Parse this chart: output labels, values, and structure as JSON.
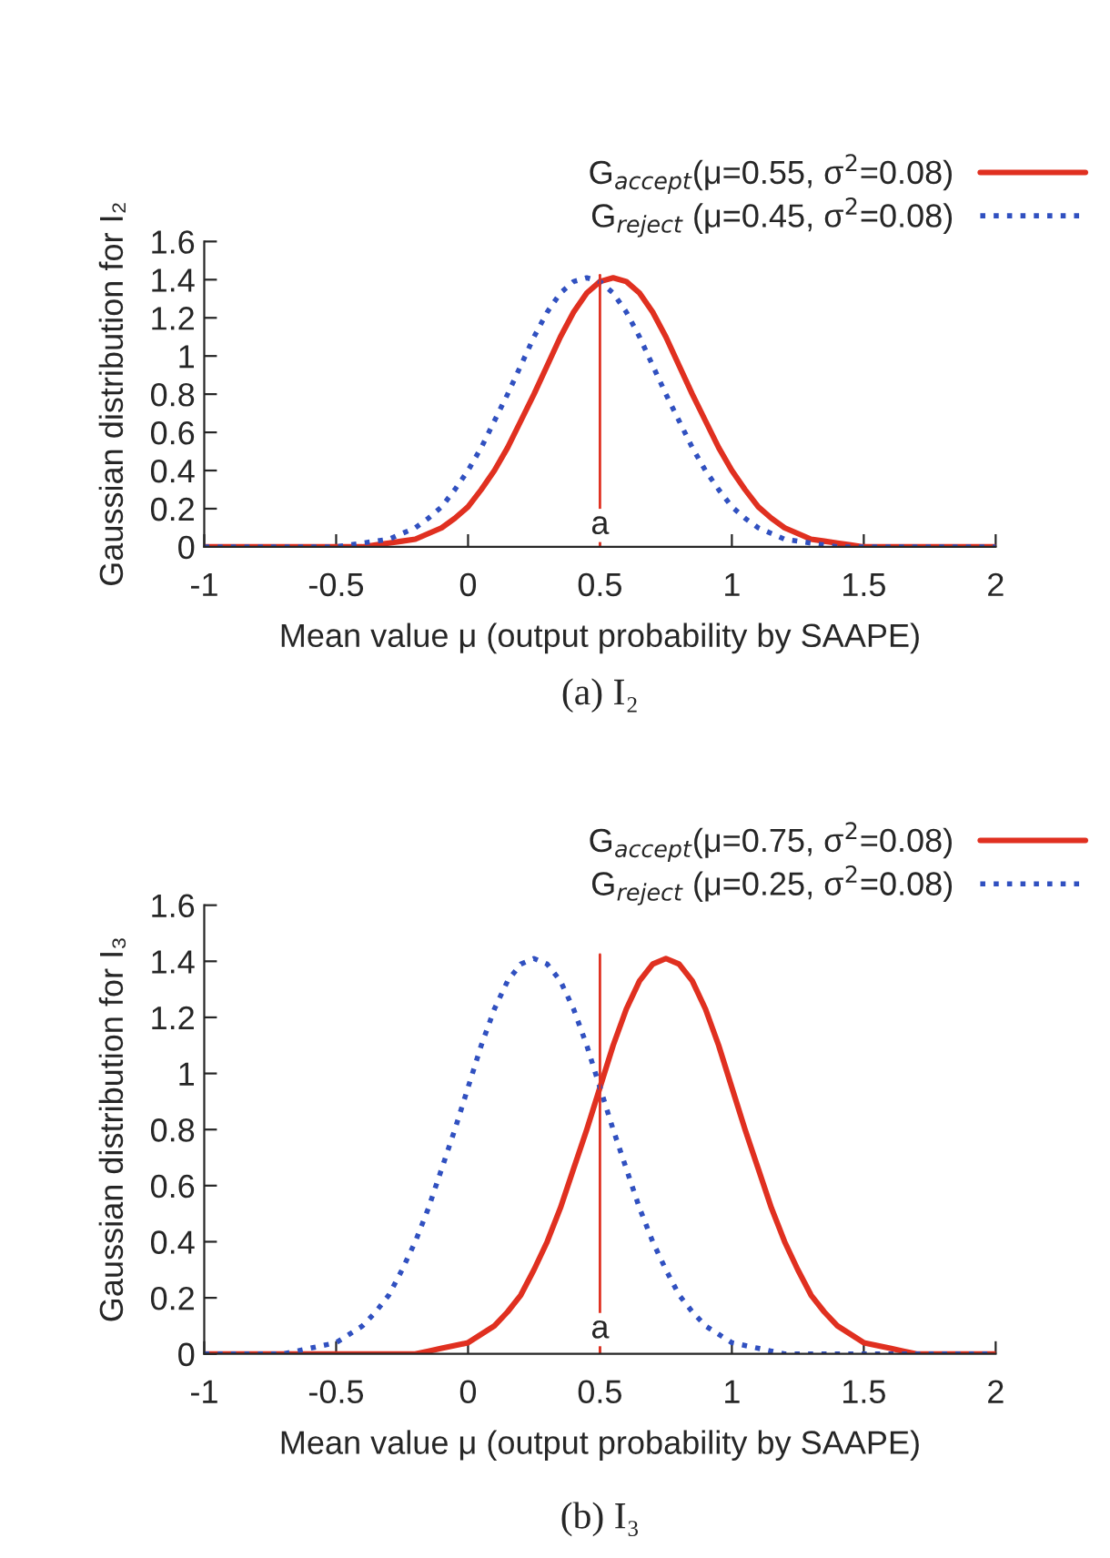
{
  "chart_data": [
    {
      "type": "line",
      "ylabel": "Gaussian distribution for I₂",
      "xlabel": "Mean value μ (output probability by SAAPE)",
      "annotations": [
        "(a) I₂"
      ],
      "legend": "top right",
      "xlim": [
        -1,
        2
      ],
      "xticks": [
        -1,
        -0.5,
        0,
        0.5,
        1,
        1.5,
        2
      ],
      "ylim": [
        0,
        1.6
      ],
      "yticks": [
        0,
        0.2,
        0.4,
        0.6,
        0.8,
        1,
        1.2,
        1.4,
        1.6
      ],
      "grid": false,
      "ref_lines": [
        {
          "axis": "x",
          "value": 0.5,
          "label": "a",
          "color": "#e03020"
        }
      ],
      "x": [
        -1,
        -0.95,
        -0.9,
        -0.85,
        -0.8,
        -0.75,
        -0.7,
        -0.65,
        -0.6,
        -0.55,
        -0.5,
        -0.45,
        -0.4,
        -0.35,
        -0.3,
        -0.25,
        -0.2,
        -0.15,
        -0.1,
        -0.05,
        0,
        0.05,
        0.1,
        0.15,
        0.2,
        0.25,
        0.3,
        0.35,
        0.4,
        0.45,
        0.5,
        0.55,
        0.6,
        0.65,
        0.7,
        0.75,
        0.8,
        0.85,
        0.9,
        0.95,
        1,
        1.05,
        1.1,
        1.15,
        1.2,
        1.25,
        1.3,
        1.35,
        1.4,
        1.45,
        1.5,
        1.55,
        1.6,
        1.65,
        1.7,
        1.75,
        1.8,
        1.85,
        1.9,
        1.95,
        2
      ],
      "series": [
        {
          "name": "G$_{accept}$(μ=0.55, σ$^{2}$=0.08)",
          "color": "#e03020",
          "line_style": "solid",
          "values": [
            0,
            0,
            0,
            0,
            0,
            0,
            0,
            0,
            0,
            0,
            0,
            0,
            0,
            0.01,
            0.02,
            0.03,
            0.04,
            0.07,
            0.1,
            0.15,
            0.21,
            0.3,
            0.4,
            0.52,
            0.66,
            0.8,
            0.95,
            1.1,
            1.23,
            1.33,
            1.39,
            1.41,
            1.39,
            1.33,
            1.23,
            1.1,
            0.95,
            0.8,
            0.66,
            0.52,
            0.4,
            0.3,
            0.21,
            0.15,
            0.1,
            0.07,
            0.04,
            0.03,
            0.02,
            0.01,
            0,
            0,
            0,
            0,
            0,
            0,
            0,
            0,
            0,
            0,
            0
          ]
        },
        {
          "name": "G$_{reject}$ (μ=0.45, σ$^{2}$=0.08)",
          "color": "#3050c0",
          "line_style": "dotted",
          "values": [
            0,
            0,
            0,
            0,
            0,
            0,
            0,
            0,
            0,
            0,
            0,
            0.01,
            0.02,
            0.03,
            0.04,
            0.07,
            0.1,
            0.15,
            0.21,
            0.3,
            0.4,
            0.52,
            0.66,
            0.8,
            0.95,
            1.1,
            1.23,
            1.33,
            1.39,
            1.41,
            1.39,
            1.33,
            1.23,
            1.1,
            0.95,
            0.8,
            0.66,
            0.52,
            0.4,
            0.3,
            0.21,
            0.15,
            0.1,
            0.07,
            0.04,
            0.03,
            0.02,
            0.01,
            0,
            0,
            0,
            0,
            0,
            0,
            0,
            0,
            0,
            0,
            0,
            0,
            0
          ]
        }
      ]
    },
    {
      "type": "line",
      "ylabel": "Gaussian distribution for I₃",
      "xlabel": "Mean value μ (output probability by SAAPE)",
      "annotations": [
        "(b) I₃"
      ],
      "legend": "top right",
      "xlim": [
        -1,
        2
      ],
      "xticks": [
        -1,
        -0.5,
        0,
        0.5,
        1,
        1.5,
        2
      ],
      "ylim": [
        0,
        1.6
      ],
      "yticks": [
        0,
        0.2,
        0.4,
        0.6,
        0.8,
        1,
        1.2,
        1.4,
        1.6
      ],
      "grid": false,
      "ref_lines": [
        {
          "axis": "x",
          "value": 0.5,
          "label": "a",
          "color": "#e03020"
        }
      ],
      "x": [
        -1,
        -0.95,
        -0.9,
        -0.85,
        -0.8,
        -0.75,
        -0.7,
        -0.65,
        -0.6,
        -0.55,
        -0.5,
        -0.45,
        -0.4,
        -0.35,
        -0.3,
        -0.25,
        -0.2,
        -0.15,
        -0.1,
        -0.05,
        0,
        0.05,
        0.1,
        0.15,
        0.2,
        0.25,
        0.3,
        0.35,
        0.4,
        0.45,
        0.5,
        0.55,
        0.6,
        0.65,
        0.7,
        0.75,
        0.8,
        0.85,
        0.9,
        0.95,
        1,
        1.05,
        1.1,
        1.15,
        1.2,
        1.25,
        1.3,
        1.35,
        1.4,
        1.45,
        1.5,
        1.55,
        1.6,
        1.65,
        1.7,
        1.75,
        1.8,
        1.85,
        1.9,
        1.95,
        2
      ],
      "series": [
        {
          "name": "G$_{accept}$(μ=0.75, σ$^{2}$=0.08)",
          "color": "#e03020",
          "line_style": "solid",
          "values": [
            0,
            0,
            0,
            0,
            0,
            0,
            0,
            0,
            0,
            0,
            0,
            0,
            0,
            0,
            0,
            0,
            0,
            0.01,
            0.02,
            0.03,
            0.04,
            0.07,
            0.1,
            0.15,
            0.21,
            0.3,
            0.4,
            0.52,
            0.66,
            0.8,
            0.95,
            1.1,
            1.23,
            1.33,
            1.39,
            1.41,
            1.39,
            1.33,
            1.23,
            1.1,
            0.95,
            0.8,
            0.66,
            0.52,
            0.4,
            0.3,
            0.21,
            0.15,
            0.1,
            0.07,
            0.04,
            0.03,
            0.02,
            0.01,
            0,
            0,
            0,
            0,
            0,
            0,
            0
          ]
        },
        {
          "name": "G$_{reject}$ (μ=0.25, σ$^{2}$=0.08)",
          "color": "#3050c0",
          "line_style": "dotted",
          "values": [
            0,
            0,
            0,
            0,
            0,
            0,
            0,
            0.01,
            0.02,
            0.03,
            0.04,
            0.07,
            0.1,
            0.15,
            0.21,
            0.3,
            0.4,
            0.52,
            0.66,
            0.8,
            0.95,
            1.1,
            1.23,
            1.33,
            1.39,
            1.41,
            1.39,
            1.33,
            1.23,
            1.1,
            0.95,
            0.8,
            0.66,
            0.52,
            0.4,
            0.3,
            0.21,
            0.15,
            0.1,
            0.07,
            0.04,
            0.03,
            0.02,
            0.01,
            0,
            0,
            0,
            0,
            0,
            0,
            0,
            0,
            0,
            0,
            0,
            0,
            0,
            0,
            0,
            0,
            0
          ]
        }
      ]
    }
  ]
}
